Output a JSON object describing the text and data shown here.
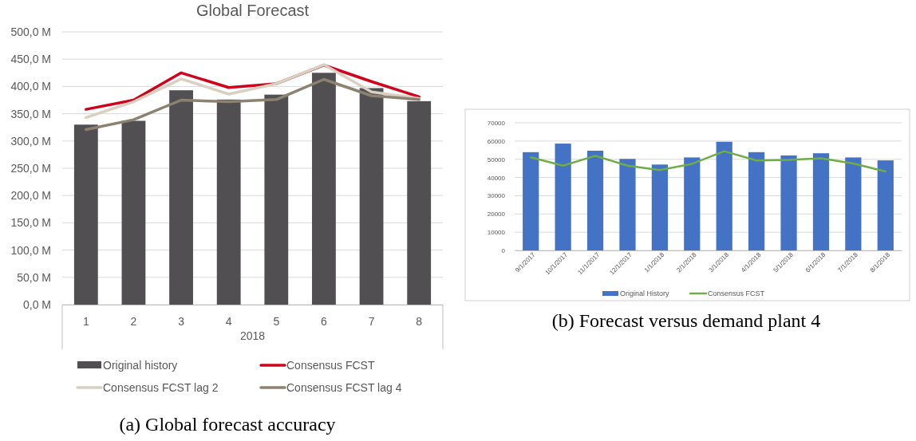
{
  "chart_data": [
    {
      "type": "bar",
      "title": "Global Forecast",
      "xlabel": "2018",
      "categories": [
        "1",
        "2",
        "3",
        "4",
        "5",
        "6",
        "7",
        "8"
      ],
      "series": [
        {
          "name": "Original history",
          "color": "#524f53",
          "values": [
            330,
            337,
            393,
            376,
            385,
            425,
            397,
            373
          ]
        },
        {
          "name": "Consensus FCST",
          "type": "line",
          "color": "#d0021b",
          "values": [
            358,
            375,
            425,
            398,
            405,
            439,
            409,
            381
          ]
        },
        {
          "name": "Consensus FCST lag 2",
          "type": "line",
          "color": "#d9d0c1",
          "values": [
            343,
            372,
            414,
            386,
            405,
            440,
            390,
            378
          ]
        },
        {
          "name": "Consensus FCST lag 4",
          "type": "line",
          "color": "#8c8271",
          "values": [
            321,
            339,
            375,
            372,
            376,
            413,
            383,
            376
          ]
        }
      ],
      "ylim": [
        0,
        500
      ],
      "yticks": [
        {
          "value": 0,
          "label": "0,0 M"
        },
        {
          "value": 50,
          "label": "50,0 M"
        },
        {
          "value": 100,
          "label": "100,0 M"
        },
        {
          "value": 150,
          "label": "150,0 M"
        },
        {
          "value": 200,
          "label": "200,0 M"
        },
        {
          "value": 250,
          "label": "250,0 M"
        },
        {
          "value": 300,
          "label": "300,0 M"
        },
        {
          "value": 350,
          "label": "350,0 M"
        },
        {
          "value": 400,
          "label": "400,0 M"
        },
        {
          "value": 450,
          "label": "450,0 M"
        },
        {
          "value": 500,
          "label": "500,0 M"
        }
      ],
      "grid": "y",
      "legend": "bottom",
      "annotations": [
        "(a) Global forecast accuracy"
      ]
    },
    {
      "type": "bar",
      "categories": [
        "9/1/2017",
        "10/1/2017",
        "11/1/2017",
        "12/1/2017",
        "1/1/2018",
        "2/1/2018",
        "3/1/2018",
        "4/1/2018",
        "5/1/2018",
        "6/1/2018",
        "7/1/2018",
        "8/1/2018"
      ],
      "series": [
        {
          "name": "Original History",
          "color": "#4472c4",
          "values": [
            53900,
            58600,
            54700,
            50200,
            47100,
            51000,
            59600,
            53900,
            52100,
            53300,
            51000,
            49400
          ]
        },
        {
          "name": "Consensus FCST",
          "type": "line",
          "color": "#70ad47",
          "values": [
            51100,
            46500,
            51900,
            46500,
            44100,
            47500,
            54400,
            49300,
            49700,
            50500,
            47700,
            43300
          ]
        }
      ],
      "ylim": [
        0,
        70000
      ],
      "yticks": [
        0,
        10000,
        20000,
        30000,
        40000,
        50000,
        60000,
        70000
      ],
      "grid": "y",
      "legend": "bottom",
      "annotations": [
        "(b) Forecast versus demand plant 4"
      ]
    }
  ]
}
